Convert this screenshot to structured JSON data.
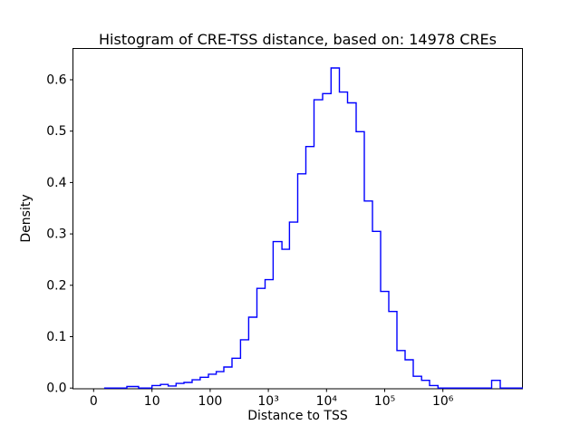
{
  "figure": {
    "background": "#ffffff",
    "border_color": "#000000"
  },
  "chart_data": {
    "type": "bar",
    "subtype": "step-histogram",
    "title": "Histogram of CRE-TSS distance, based on: 14978 CREs",
    "xlabel": "Distance to TSS",
    "ylabel": "Density",
    "n_samples": 14978,
    "x_scale": "symlog",
    "grid": "off",
    "legend": "none",
    "line_color": "#0000ff",
    "ylim": [
      0,
      0.66
    ],
    "y_ticks": [
      {
        "value": 0.0,
        "label": "0.0"
      },
      {
        "value": 0.1,
        "label": "0.1"
      },
      {
        "value": 0.2,
        "label": "0.2"
      },
      {
        "value": 0.3,
        "label": "0.3"
      },
      {
        "value": 0.4,
        "label": "0.4"
      },
      {
        "value": 0.5,
        "label": "0.5"
      },
      {
        "value": 0.6,
        "label": "0.6"
      }
    ],
    "x_ticks": [
      {
        "value": 0,
        "label": "0"
      },
      {
        "value": 10,
        "label": "10"
      },
      {
        "value": 100,
        "label": "100"
      },
      {
        "value": 1000,
        "label": "10³"
      },
      {
        "value": 10000,
        "label": "10⁴"
      },
      {
        "value": 100000,
        "label": "10⁵"
      },
      {
        "value": 1000000,
        "label": "10⁶"
      }
    ],
    "bin_edges": [
      1.8,
      5.7,
      7.7,
      10,
      14,
      19,
      26,
      35.5,
      49,
      67.5,
      93.5,
      127,
      172,
      237,
      333,
      460,
      637,
      880,
      1210,
      1710,
      2310,
      3200,
      4420,
      6100,
      8570,
      11970,
      16640,
      22970,
      32300,
      44600,
      61600,
      85100,
      117500,
      162200,
      224000,
      309000,
      431000,
      590000,
      824000,
      6880000,
      9680000,
      23700000
    ],
    "densities": [
      0,
      0.003,
      0,
      0.005,
      0.007,
      0.004,
      0.009,
      0.011,
      0.016,
      0.021,
      0.027,
      0.032,
      0.041,
      0.058,
      0.094,
      0.138,
      0.194,
      0.211,
      0.285,
      0.27,
      0.323,
      0.417,
      0.47,
      0.561,
      0.573,
      0.623,
      0.576,
      0.555,
      0.499,
      0.364,
      0.305,
      0.188,
      0.149,
      0.073,
      0.055,
      0.023,
      0.015,
      0.005,
      0,
      0.015,
      0
    ],
    "peak": {
      "x_range": [
        11970,
        16640
      ],
      "density": 0.623
    }
  }
}
